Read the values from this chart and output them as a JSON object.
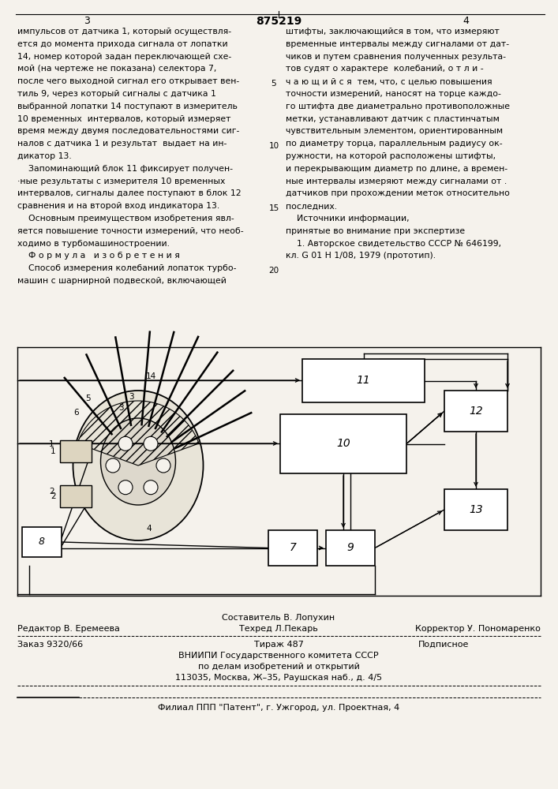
{
  "bg_color": "#f5f2ec",
  "title_number": "875219",
  "col_left_num": "3",
  "col_right_num": "4",
  "left_col_text": [
    "импульсов от датчика 1, который осуществля-",
    "ется до момента прихода сигнала от лопатки",
    "14, номер которой задан переключающей схе-",
    "мой (на чертеже не показана) селектора 7,",
    "после чего выходной сигнал его открывает вен-",
    "тиль 9, через который сигналы с датчика 1",
    "выбранной лопатки 14 поступают в измеритель",
    "10 временных  интервалов, который измеряет",
    "время между двумя последовательностями сиг-",
    "налов с датчика 1 и результат  выдает на ин-",
    "дикатор 13.",
    "    Запоминающий блок 11 фиксирует получен-",
    "·ные результаты с измерителя 10 временных",
    "интервалов, сигналы далее поступают в блок 12",
    "сравнения и на второй вход индикатора 13.",
    "    Основным преимуществом изобретения явл-",
    "яется повышение точности измерений, что необ-",
    "ходимо в турбомашиностроении.",
    "    Ф о р м у л а   и з о б р е т е н и я",
    "    Способ измерения колебаний лопаток турбо-",
    "машин с шарнирной подвеской, включающей"
  ],
  "right_col_text": [
    "штифты, заключающийся в том, что измеряют",
    "временные интервалы между сигналами от дат-",
    "чиков и путем сравнения полученных результа-",
    "тов судят о характере  колебаний, о т л и -",
    "ч а ю щ и й с я  тем, что, с целью повышения",
    "точности измерений, наносят на торце каждо-",
    "го штифта две диаметрально противоположные",
    "метки, устанавливают датчик с пластинчатым",
    "чувствительным элементом, ориентированным",
    "по диаметру торца, параллельным радиусу ок-",
    "ружности, на которой расположены штифты,",
    "и перекрывающим диаметр по длине, а времен-",
    "ные интервалы измеряют между сигналами от .",
    "датчиков при прохождении меток относительно",
    "последних.",
    "    Источники информации,",
    "принятые во внимание при экспертизе",
    "    1. Авторское свидетельство СССР № 646199,",
    "кл. G 01 H 1/08, 1979 (прототип)."
  ],
  "footer_composer": "Составитель В. Лопухин",
  "footer_techred": "Техред Л.Пекарь",
  "footer_editor": "Редактор В. Еремеева",
  "footer_corrector": "Корректор У. Пономаренко",
  "footer_order": "Заказ 9320/66",
  "footer_edition": "Тираж 487",
  "footer_subscription": "Подписное",
  "footer_org1": "ВНИИПИ Государственного комитета СССР",
  "footer_org2": "по делам изобретений и открытий",
  "footer_org3": "113035, Москва, Ж–35, Раушская наб., д. 4/5",
  "footer_branch": "Филиал ППП \"Патент\", г. Ужгород, ул. Проектная, 4"
}
